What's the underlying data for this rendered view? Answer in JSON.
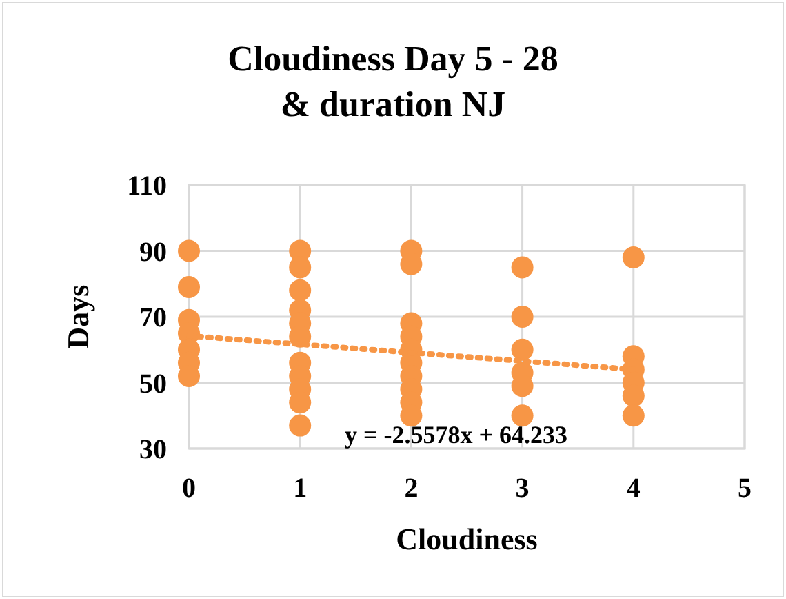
{
  "chart_data": {
    "type": "scatter",
    "title": "Cloudiness Day 5 - 28\n& duration NJ",
    "xlabel": "Cloudiness",
    "ylabel": "Days",
    "xlim": [
      0,
      5
    ],
    "xticks": [
      0,
      1,
      2,
      3,
      4,
      5
    ],
    "ylim": [
      30,
      110
    ],
    "yticks": [
      30,
      50,
      70,
      90,
      110
    ],
    "grid": true,
    "annotations": [
      "y = -2.5578x + 64.233"
    ],
    "series": [
      {
        "color": "#f79646",
        "marker": "circle",
        "x": [
          0,
          0,
          0,
          0,
          0,
          0,
          0,
          1,
          1,
          1,
          1,
          1,
          1,
          1,
          1,
          1,
          1,
          1,
          2,
          2,
          2,
          2,
          2,
          2,
          2,
          2,
          2,
          2,
          3,
          3,
          3,
          3,
          3,
          3,
          4,
          4,
          4,
          4,
          4,
          4
        ],
        "values": [
          90,
          79,
          69,
          65,
          60,
          56,
          52,
          90,
          85,
          78,
          72,
          68,
          64,
          56,
          52,
          48,
          44,
          37,
          90,
          86,
          68,
          64,
          60,
          56,
          52,
          48,
          44,
          40,
          85,
          70,
          60,
          53,
          49,
          40,
          88,
          58,
          54,
          50,
          46,
          40
        ]
      },
      {
        "type": "line",
        "color": "#f79646",
        "line_style": "dotted",
        "x": [
          0,
          4
        ],
        "values": [
          64.2,
          54.0
        ]
      }
    ]
  }
}
